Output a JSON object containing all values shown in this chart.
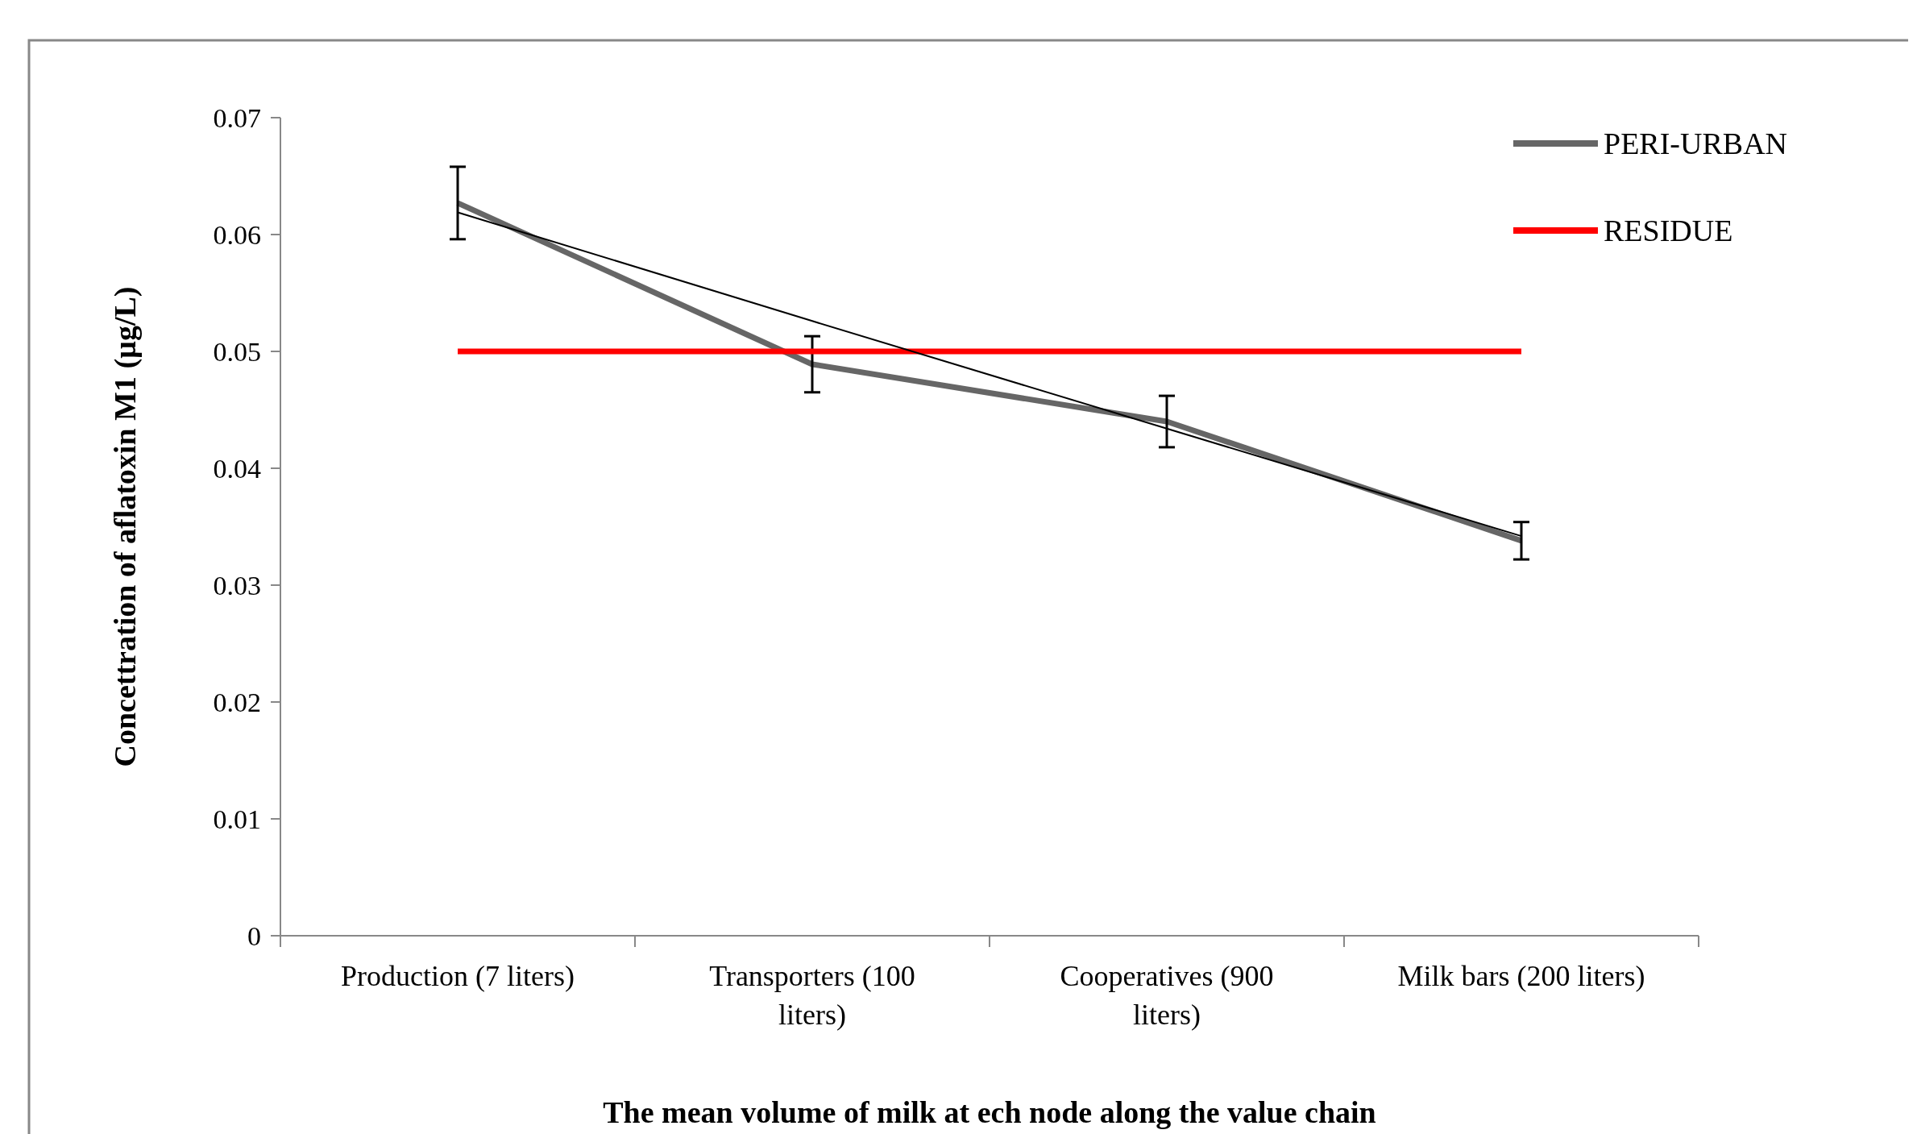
{
  "chart_data": {
    "type": "line",
    "xlabel": "The mean  volume of milk  at ech node along the value chain",
    "ylabel": "Concettration of aflatoxin M1 (µg/L)",
    "categories": [
      "Production (7 liters)",
      "Transporters (100 liters)",
      "Cooperatives (900 liters)",
      "Milk bars (200 liters)"
    ],
    "series": [
      {
        "name": "PERI-URBAN",
        "color": "#666666",
        "values": [
          0.0627,
          0.0489,
          0.044,
          0.0338
        ],
        "errors": [
          0.0031,
          0.0024,
          0.0022,
          0.0016
        ]
      },
      {
        "name": "RESIDUE",
        "color": "#ff0000",
        "values": [
          0.05,
          0.05,
          0.05,
          0.05
        ]
      },
      {
        "color": "#000000",
        "values": [
          0.0619,
          0.0526,
          0.0434,
          0.0342
        ]
      }
    ],
    "ylim": [
      0,
      0.07
    ],
    "yticks": [
      0,
      0.01,
      0.02,
      0.03,
      0.04,
      0.05,
      0.06,
      0.07
    ],
    "legend": "top right",
    "grid": false,
    "line_style": "solid"
  }
}
